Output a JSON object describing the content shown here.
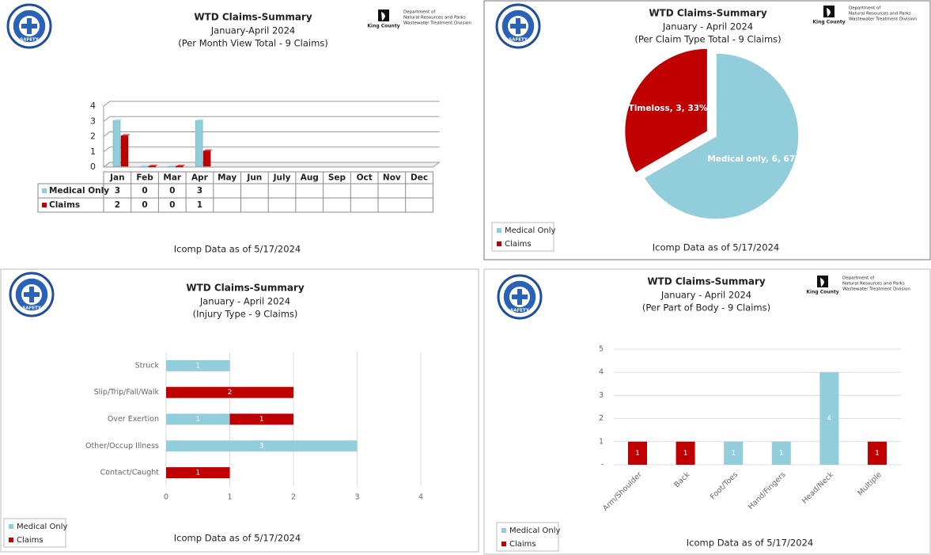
{
  "branding": {
    "badge": "SAFETY",
    "county": "King County",
    "dept": [
      "Department of",
      "Natural Resources and Parks",
      "Wastewater Treatment Division"
    ]
  },
  "chart_data": [
    {
      "type": "bar",
      "data_table": true,
      "county_logo": true,
      "title": "WTD Claims-Summary",
      "subtitle": [
        "January-April 2024",
        "(Per Month View Total - 9 Claims)"
      ],
      "footnote": "Icomp Data as of  5/17/2024",
      "categories": [
        "Jan",
        "Feb",
        "Mar",
        "Apr",
        "May",
        "Jun",
        "July",
        "Aug",
        "Sep",
        "Oct",
        "Nov",
        "Dec"
      ],
      "series": [
        {
          "name": "Medical Only",
          "color": "#92cddc",
          "values": [
            3,
            0,
            0,
            3,
            null,
            null,
            null,
            null,
            null,
            null,
            null,
            null
          ]
        },
        {
          "name": "Claims",
          "color": "#c00000",
          "values": [
            2,
            0,
            0,
            1,
            null,
            null,
            null,
            null,
            null,
            null,
            null,
            null
          ]
        }
      ],
      "ylim": [
        0,
        4
      ],
      "yticks": [
        0,
        1,
        2,
        3,
        4
      ],
      "grid": true
    },
    {
      "type": "pie",
      "county_logo": true,
      "title": "WTD Claims-Summary",
      "subtitle": [
        "January - April 2024",
        "(Per Claim Type Total - 9 Claims)"
      ],
      "footnote": "Icomp Data as of  5/17/2024",
      "labels": [
        "Medical only",
        "Timeloss"
      ],
      "values": [
        6,
        3
      ],
      "colors": [
        "#92cddc",
        "#c00000"
      ],
      "value_labels": [
        "Medical only, 6, 67%",
        "Timeloss, 3, 33%"
      ],
      "legend": [
        {
          "name": "Medical Only",
          "color": "#92cddc"
        },
        {
          "name": "Claims",
          "color": "#c00000"
        }
      ]
    },
    {
      "type": "hbar",
      "county_logo": false,
      "title": "WTD Claims-Summary",
      "subtitle": [
        "January - April 2024",
        "(Injury Type - 9 Claims)"
      ],
      "footnote": "Icomp Data as of 5/17/2024",
      "categories": [
        "Struck",
        "Slip/Trip/Fall/Walk",
        "Over Exertion",
        "Other/Occup Illness",
        "Contact/Caught"
      ],
      "series": [
        {
          "name": "Medical Only",
          "color": "#92cddc",
          "values": [
            1,
            null,
            1,
            3,
            null
          ]
        },
        {
          "name": "Claims",
          "color": "#c00000",
          "values": [
            null,
            2,
            1,
            null,
            1
          ]
        }
      ],
      "xlim": [
        0,
        4
      ],
      "xticks": [
        0,
        1,
        2,
        3,
        4
      ],
      "grid": true
    },
    {
      "type": "bar",
      "data_table": false,
      "county_logo": true,
      "title": "WTD Claims-Summary",
      "subtitle": [
        "January - April 2024",
        "(Per Part of Body - 9 Claims)"
      ],
      "footnote": "Icomp Data as of 5/17/2024",
      "categories": [
        "Arm/Shoulder",
        "Back",
        "Foot/Toes",
        "Hand/Fingers",
        "Head/Neck",
        "Multiple"
      ],
      "series": [
        {
          "name": "Medical Only",
          "color": "#92cddc",
          "values": [
            null,
            null,
            1,
            1,
            4,
            null
          ]
        },
        {
          "name": "Claims",
          "color": "#c00000",
          "values": [
            1,
            1,
            null,
            null,
            null,
            1
          ]
        }
      ],
      "ylim": [
        0,
        5
      ],
      "yticks": [
        {
          "value": 0,
          "label": "-"
        },
        1,
        2,
        3,
        4,
        5
      ],
      "grid": true
    }
  ]
}
